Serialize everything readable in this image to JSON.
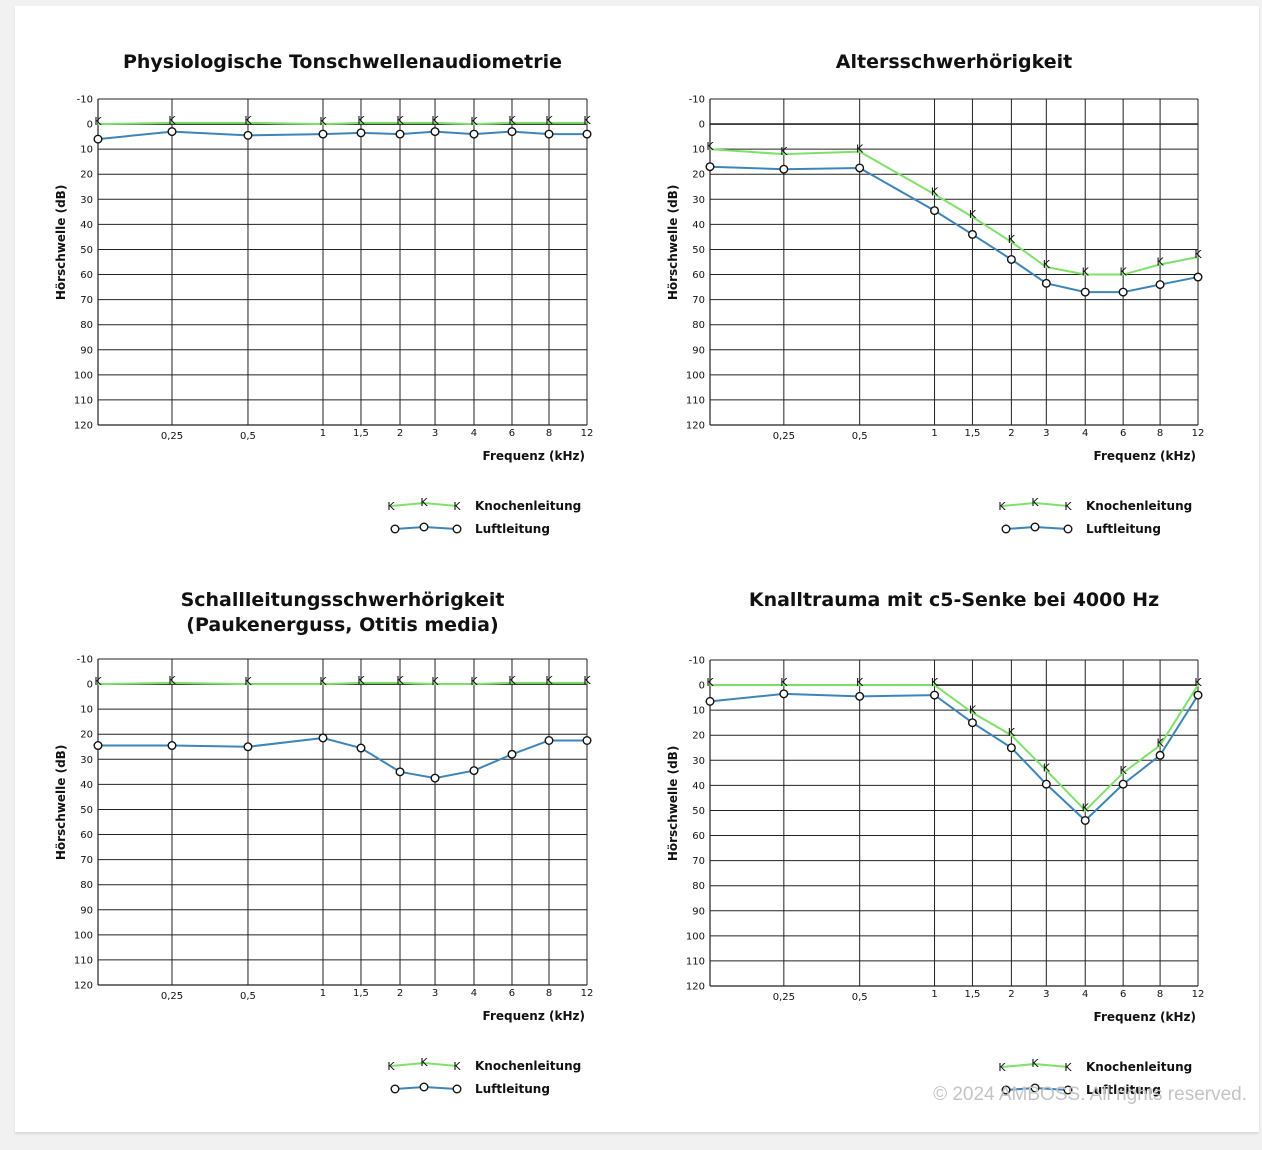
{
  "colors": {
    "bone": "#7fe06a",
    "air": "#3d85b8",
    "grid": "#222222"
  },
  "copyright": "© 2024 AMBOSS. All rights reserved.",
  "chart_data": [
    {
      "type": "line",
      "title": [
        "Physiologische Tonschwellenaudiometrie"
      ],
      "xlabel": "Frequenz (kHz)",
      "ylabel": "Hörschwelle (dB)",
      "x_ticks": [
        "0,25",
        "0,5",
        "1",
        "1,5",
        "2",
        "3",
        "4",
        "6",
        "8",
        "12"
      ],
      "y_ticks": [
        "-10",
        "0",
        "10",
        "20",
        "30",
        "40",
        "50",
        "60",
        "70",
        "80",
        "90",
        "100",
        "110",
        "120"
      ],
      "ylim": [
        -10,
        120
      ],
      "y_inverted": true,
      "legend": {
        "bone_label": "Knochenleitung",
        "air_label": "Luftleitung",
        "bone_marker": "K",
        "air_marker": "O"
      },
      "series": [
        {
          "name": "Knochenleitung",
          "marker": "K",
          "x": [
            "0,125",
            "0,25",
            "0,5",
            "1",
            "1,5",
            "2",
            "3",
            "4",
            "6",
            "8",
            "12"
          ],
          "values": [
            0,
            -0.5,
            -0.5,
            0,
            -0.5,
            -0.5,
            -0.5,
            0,
            -0.5,
            -0.5,
            -0.5
          ]
        },
        {
          "name": "Luftleitung",
          "marker": "O",
          "x": [
            "0,125",
            "0,25",
            "0,5",
            "1",
            "1,5",
            "2",
            "3",
            "4",
            "6",
            "8",
            "12"
          ],
          "values": [
            6,
            3,
            4.5,
            4,
            3.5,
            4,
            3,
            4,
            3,
            4,
            4
          ]
        }
      ]
    },
    {
      "type": "line",
      "title": [
        "Altersschwerhörigkeit"
      ],
      "xlabel": "Frequenz (kHz)",
      "ylabel": "Hörschwelle (dB)",
      "x_ticks": [
        "0,25",
        "0,5",
        "1",
        "1,5",
        "2",
        "3",
        "4",
        "6",
        "8",
        "12"
      ],
      "y_ticks": [
        "-10",
        "0",
        "10",
        "20",
        "30",
        "40",
        "50",
        "60",
        "70",
        "80",
        "90",
        "100",
        "110",
        "120"
      ],
      "ylim": [
        -10,
        120
      ],
      "y_inverted": true,
      "legend": {
        "bone_label": "Knochenleitung",
        "air_label": "Luftleitung",
        "bone_marker": "K",
        "air_marker": "O"
      },
      "series": [
        {
          "name": "Knochenleitung",
          "marker": "K",
          "x": [
            "0,125",
            "0,25",
            "0,5",
            "1",
            "1,5",
            "2",
            "3",
            "4",
            "6",
            "8",
            "12"
          ],
          "values": [
            10,
            12,
            11,
            28,
            37,
            47,
            57,
            60,
            60,
            56,
            53
          ]
        },
        {
          "name": "Luftleitung",
          "marker": "O",
          "x": [
            "0,125",
            "0,25",
            "0,5",
            "1",
            "1,5",
            "2",
            "3",
            "4",
            "6",
            "8",
            "12"
          ],
          "values": [
            17,
            18,
            17.5,
            34.5,
            44,
            54,
            63.5,
            67,
            67,
            64,
            61
          ]
        }
      ]
    },
    {
      "type": "line",
      "title": [
        "Schallleitungsschwerhörigkeit",
        "(Paukenerguss, Otitis media)"
      ],
      "xlabel": "Frequenz (kHz)",
      "ylabel": "Hörschwelle (dB)",
      "x_ticks": [
        "0,25",
        "0,5",
        "1",
        "1,5",
        "2",
        "3",
        "4",
        "6",
        "8",
        "12"
      ],
      "y_ticks": [
        "-10",
        "0",
        "10",
        "20",
        "30",
        "40",
        "50",
        "60",
        "70",
        "80",
        "90",
        "100",
        "110",
        "120"
      ],
      "ylim": [
        -10,
        120
      ],
      "y_inverted": true,
      "legend": {
        "bone_label": "Knochenleitung",
        "air_label": "Luftleitung",
        "bone_marker": "K",
        "air_marker": "O"
      },
      "series": [
        {
          "name": "Knochenleitung",
          "marker": "K",
          "x": [
            "0,125",
            "0,25",
            "0,5",
            "1",
            "1,5",
            "2",
            "3",
            "4",
            "6",
            "8",
            "12"
          ],
          "values": [
            0,
            -0.5,
            0,
            0,
            -0.5,
            -0.5,
            0,
            0,
            -0.5,
            -0.5,
            -0.5
          ]
        },
        {
          "name": "Luftleitung",
          "marker": "O",
          "x": [
            "0,125",
            "0,25",
            "0,5",
            "1",
            "1,5",
            "2",
            "3",
            "4",
            "6",
            "8",
            "12"
          ],
          "values": [
            24.5,
            24.5,
            25,
            21.5,
            25.5,
            35,
            37.5,
            34.5,
            28,
            22.5,
            22.5
          ]
        }
      ]
    },
    {
      "type": "line",
      "title": [
        "Knalltrauma mit c5-Senke bei 4000 Hz"
      ],
      "xlabel": "Frequenz (kHz)",
      "ylabel": "Hörschwelle (dB)",
      "x_ticks": [
        "0,25",
        "0,5",
        "1",
        "1,5",
        "2",
        "3",
        "4",
        "6",
        "8",
        "12"
      ],
      "y_ticks": [
        "-10",
        "0",
        "10",
        "20",
        "30",
        "40",
        "50",
        "60",
        "70",
        "80",
        "90",
        "100",
        "110",
        "120"
      ],
      "ylim": [
        -10,
        120
      ],
      "y_inverted": true,
      "legend": {
        "bone_label": "Knochenleitung",
        "air_label": "Luftleitung",
        "bone_marker": "K",
        "air_marker": "O"
      },
      "series": [
        {
          "name": "Knochenleitung",
          "marker": "K",
          "x": [
            "0,125",
            "0,25",
            "0,5",
            "1",
            "1,5",
            "2",
            "3",
            "4",
            "6",
            "8",
            "12"
          ],
          "values": [
            0,
            0,
            0,
            0,
            11,
            20,
            34,
            50,
            35,
            24,
            0
          ]
        },
        {
          "name": "Luftleitung",
          "marker": "O",
          "x": [
            "0,125",
            "0,25",
            "0,5",
            "1",
            "1,5",
            "2",
            "3",
            "4",
            "6",
            "8",
            "12"
          ],
          "values": [
            6.5,
            3.5,
            4.5,
            4,
            15,
            25,
            39.5,
            54,
            39.5,
            28,
            4
          ]
        }
      ]
    }
  ]
}
